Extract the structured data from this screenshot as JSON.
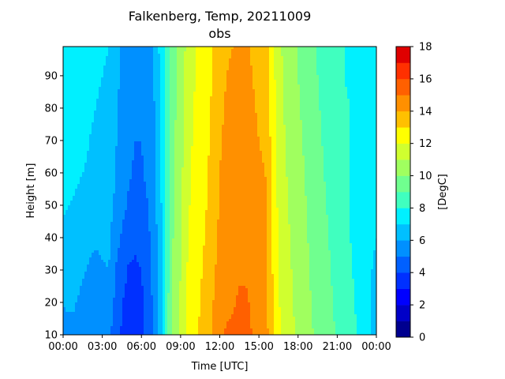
{
  "chart_data": {
    "type": "heatmap",
    "title": "Falkenberg, Temp, 20211009",
    "subtitle": "obs",
    "xlabel": "Time [UTC]",
    "ylabel": "Height [m]",
    "xlim": [
      0,
      24
    ],
    "ylim": [
      10,
      99
    ],
    "x_ticks": [
      0,
      3,
      6,
      9,
      12,
      15,
      18,
      21,
      24
    ],
    "x_tick_labels": [
      "00:00",
      "03:00",
      "06:00",
      "09:00",
      "12:00",
      "15:00",
      "18:00",
      "21:00",
      "00:00"
    ],
    "y_ticks": [
      10,
      20,
      30,
      40,
      50,
      60,
      70,
      80,
      90
    ],
    "y_tick_labels": [
      "10",
      "20",
      "30",
      "40",
      "50",
      "60",
      "70",
      "80",
      "90"
    ],
    "colorbar": {
      "label": "[DegC]",
      "levels": [
        0,
        1,
        2,
        3,
        4,
        5,
        6,
        7,
        8,
        9,
        10,
        11,
        12,
        13,
        14,
        15,
        16,
        17,
        18
      ],
      "tick_values": [
        0,
        2,
        4,
        6,
        8,
        10,
        12,
        14,
        16,
        18
      ],
      "tick_labels": [
        "0",
        "2",
        "4",
        "6",
        "8",
        "10",
        "12",
        "14",
        "16",
        "18"
      ],
      "colors": [
        "#00008f",
        "#0000c8",
        "#0000ff",
        "#0030ff",
        "#0060ff",
        "#0090ff",
        "#00c0ff",
        "#00f0ff",
        "#40ffbf",
        "#70ff8f",
        "#a0ff5f",
        "#d0ff2f",
        "#ffff00",
        "#ffc000",
        "#ff9000",
        "#ff6000",
        "#ff3000",
        "#df0000",
        "#9f0000"
      ]
    },
    "x_hours": [
      0,
      0.5,
      1,
      1.5,
      2,
      2.5,
      3,
      3.5,
      4,
      4.5,
      5,
      5.5,
      6,
      6.5,
      7,
      7.5,
      8,
      8.5,
      9,
      9.5,
      10,
      10.5,
      11,
      11.5,
      12,
      12.5,
      13,
      13.5,
      14,
      14.5,
      15,
      15.5,
      16,
      16.5,
      17,
      17.5,
      18,
      18.5,
      19,
      19.5,
      20,
      20.5,
      21,
      21.5,
      22,
      22.5,
      23,
      23.5,
      24
    ],
    "heights_m": [
      10,
      20,
      30,
      40,
      50,
      60,
      70,
      80,
      90,
      99
    ],
    "temperature_degC": [
      [
        5.8,
        5.6,
        5.9,
        5.5,
        5.2,
        5.2,
        5.3,
        5.2,
        4.5,
        3.9,
        3.7,
        3.7,
        3.7,
        4.4,
        5.3,
        6.6,
        8.8,
        10.5,
        11.2,
        12.2,
        12.8,
        13.1,
        13.5,
        14.2,
        14.8,
        15.1,
        15.2,
        15.3,
        15.2,
        15.0,
        14.6,
        14.5,
        13.2,
        12.2,
        11.6,
        11.2,
        10.8,
        10.5,
        10.1,
        9.8,
        9.5,
        9.2,
        8.9,
        8.6,
        8.3,
        8.0,
        7.6,
        7.0,
        6.5
      ],
      [
        6.0,
        6.2,
        6.0,
        5.8,
        5.5,
        5.3,
        5.5,
        5.6,
        4.8,
        4.0,
        3.8,
        3.7,
        3.8,
        4.5,
        5.3,
        6.6,
        8.8,
        10.4,
        11.1,
        12.1,
        12.7,
        13.0,
        13.4,
        14.0,
        14.6,
        14.8,
        14.9,
        15.1,
        15.2,
        14.8,
        14.5,
        14.4,
        13.2,
        12.1,
        11.5,
        11.1,
        10.7,
        10.4,
        10.0,
        9.7,
        9.4,
        9.1,
        8.8,
        8.5,
        8.2,
        7.9,
        7.5,
        7.0,
        6.6
      ],
      [
        6.4,
        6.5,
        6.3,
        6.1,
        5.9,
        5.8,
        5.9,
        6.0,
        5.0,
        4.4,
        3.9,
        3.9,
        4.0,
        4.6,
        5.4,
        6.7,
        8.7,
        10.3,
        11.0,
        12.0,
        12.6,
        12.9,
        13.2,
        13.8,
        14.4,
        14.6,
        14.8,
        14.9,
        14.8,
        14.6,
        14.4,
        14.3,
        13.1,
        12.0,
        11.4,
        11.0,
        10.6,
        10.3,
        9.9,
        9.6,
        9.3,
        9.0,
        8.7,
        8.4,
        8.1,
        7.8,
        7.5,
        7.1,
        6.8
      ],
      [
        6.8,
        6.7,
        6.6,
        6.4,
        6.2,
        6.1,
        6.2,
        6.2,
        5.4,
        4.9,
        4.4,
        4.1,
        4.3,
        4.8,
        5.5,
        6.8,
        8.7,
        10.2,
        10.9,
        11.9,
        12.4,
        12.8,
        13.1,
        13.6,
        14.2,
        14.5,
        14.6,
        14.7,
        14.7,
        14.5,
        14.3,
        14.2,
        13.0,
        11.9,
        11.3,
        10.9,
        10.5,
        10.2,
        9.8,
        9.5,
        9.2,
        8.9,
        8.6,
        8.3,
        8.0,
        7.8,
        7.5,
        7.2,
        7.0
      ],
      [
        7.1,
        7.0,
        6.9,
        6.8,
        6.6,
        6.5,
        6.5,
        6.4,
        5.8,
        5.3,
        4.9,
        4.7,
        4.7,
        5.0,
        5.7,
        6.9,
        8.6,
        10.1,
        10.8,
        11.8,
        12.3,
        12.7,
        13.0,
        13.5,
        14.1,
        14.4,
        14.5,
        14.6,
        14.6,
        14.4,
        14.2,
        14.1,
        12.9,
        11.8,
        11.2,
        10.8,
        10.4,
        10.1,
        9.7,
        9.4,
        9.1,
        8.8,
        8.5,
        8.2,
        8.0,
        7.8,
        7.6,
        7.4,
        7.2
      ],
      [
        7.3,
        7.2,
        7.1,
        7.0,
        6.9,
        6.8,
        6.7,
        6.6,
        6.0,
        5.5,
        5.1,
        4.9,
        4.9,
        5.2,
        5.8,
        7.0,
        8.6,
        10.0,
        10.7,
        11.7,
        12.2,
        12.6,
        12.9,
        13.4,
        14.0,
        14.3,
        14.4,
        14.5,
        14.5,
        14.3,
        14.1,
        14.0,
        12.8,
        11.7,
        11.1,
        10.7,
        10.3,
        10.0,
        9.6,
        9.3,
        9.0,
        8.7,
        8.4,
        8.2,
        8.0,
        7.8,
        7.7,
        7.5,
        7.4
      ],
      [
        7.5,
        7.4,
        7.3,
        7.2,
        7.0,
        6.9,
        6.8,
        6.7,
        6.1,
        5.6,
        5.2,
        5.0,
        5.0,
        5.3,
        5.9,
        7.1,
        8.6,
        9.9,
        10.6,
        11.6,
        12.1,
        12.5,
        12.8,
        13.3,
        13.9,
        14.2,
        14.3,
        14.4,
        14.4,
        14.2,
        14.0,
        13.9,
        12.7,
        11.6,
        11.0,
        10.6,
        10.2,
        9.9,
        9.5,
        9.2,
        8.9,
        8.6,
        8.4,
        8.2,
        8.0,
        7.9,
        7.8,
        7.7,
        7.6
      ],
      [
        7.7,
        7.6,
        7.5,
        7.3,
        7.1,
        7.0,
        6.9,
        6.8,
        6.2,
        5.7,
        5.3,
        5.0,
        5.1,
        5.4,
        6.0,
        7.2,
        8.6,
        9.8,
        10.5,
        11.5,
        12.0,
        12.4,
        12.7,
        13.2,
        13.8,
        14.1,
        14.2,
        14.3,
        14.3,
        14.1,
        13.9,
        13.8,
        12.6,
        11.5,
        10.9,
        10.5,
        10.1,
        9.8,
        9.4,
        9.1,
        8.8,
        8.5,
        8.3,
        8.1,
        8.0,
        7.9,
        7.8,
        7.7,
        7.7
      ],
      [
        7.8,
        7.7,
        7.6,
        7.4,
        7.2,
        7.1,
        7.0,
        6.9,
        6.3,
        5.8,
        5.4,
        5.1,
        5.2,
        5.5,
        6.1,
        7.3,
        8.6,
        9.8,
        10.4,
        11.4,
        11.9,
        12.3,
        12.6,
        13.1,
        13.7,
        14.0,
        14.1,
        14.2,
        14.2,
        14.0,
        13.8,
        13.7,
        12.5,
        11.4,
        10.8,
        10.4,
        10.0,
        9.7,
        9.3,
        9.0,
        8.7,
        8.4,
        8.2,
        8.0,
        7.9,
        7.8,
        7.8,
        7.8,
        7.8
      ],
      [
        7.9,
        7.8,
        7.7,
        7.5,
        7.3,
        7.2,
        7.1,
        7.0,
        6.4,
        5.9,
        5.5,
        5.2,
        5.3,
        5.6,
        6.2,
        7.4,
        8.6,
        9.7,
        10.3,
        11.3,
        11.8,
        12.2,
        12.5,
        13.0,
        13.6,
        13.9,
        14.0,
        14.1,
        14.1,
        13.9,
        13.7,
        13.6,
        12.4,
        11.3,
        10.7,
        10.3,
        9.9,
        9.6,
        9.2,
        8.9,
        8.6,
        8.3,
        8.1,
        8.0,
        7.9,
        7.8,
        7.8,
        7.9,
        7.9
      ]
    ]
  }
}
